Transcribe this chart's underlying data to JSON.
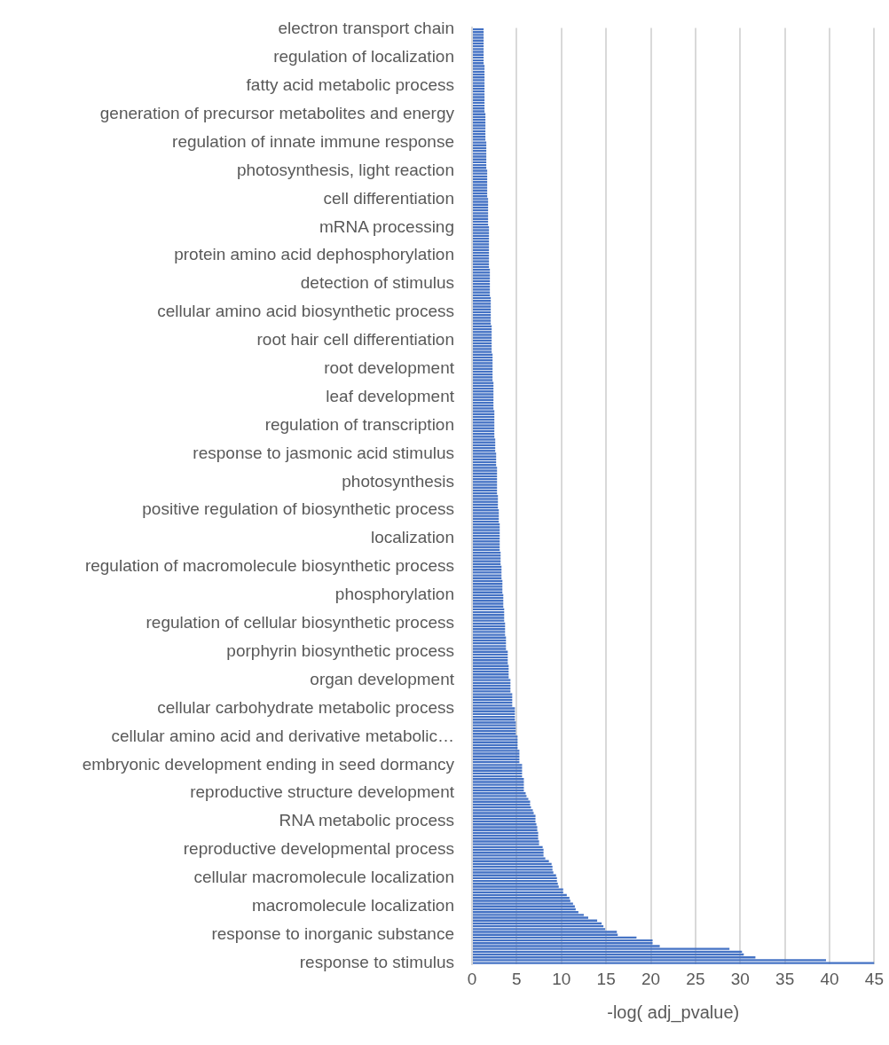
{
  "chart_data": {
    "type": "bar",
    "orientation": "horizontal",
    "xlabel": "-log( adj_pvalue)",
    "color": "#4472c4",
    "xlim": [
      0,
      45
    ],
    "xticks": [
      0,
      5,
      10,
      15,
      20,
      25,
      30,
      35,
      40,
      45
    ],
    "grid": "x",
    "categories": [
      "electron transport chain",
      null,
      null,
      null,
      null,
      null,
      null,
      null,
      null,
      null,
      "regulation of localization",
      null,
      null,
      null,
      null,
      null,
      null,
      null,
      null,
      null,
      "fatty acid metabolic process",
      null,
      null,
      null,
      null,
      null,
      null,
      null,
      null,
      null,
      "generation of precursor metabolites and energy",
      null,
      null,
      null,
      null,
      null,
      null,
      null,
      null,
      null,
      "regulation of innate immune response",
      null,
      null,
      null,
      null,
      null,
      null,
      null,
      null,
      null,
      "photosynthesis, light reaction",
      null,
      null,
      null,
      null,
      null,
      null,
      null,
      null,
      null,
      "cell differentiation",
      null,
      null,
      null,
      null,
      null,
      null,
      null,
      null,
      null,
      "mRNA processing",
      null,
      null,
      null,
      null,
      null,
      null,
      null,
      null,
      null,
      "protein amino acid dephosphorylation",
      null,
      null,
      null,
      null,
      null,
      null,
      null,
      null,
      null,
      "detection of stimulus",
      null,
      null,
      null,
      null,
      null,
      null,
      null,
      null,
      null,
      "cellular amino acid biosynthetic process",
      null,
      null,
      null,
      null,
      null,
      null,
      null,
      null,
      null,
      "root hair cell differentiation",
      null,
      null,
      null,
      null,
      null,
      null,
      null,
      null,
      null,
      "root development",
      null,
      null,
      null,
      null,
      null,
      null,
      null,
      null,
      null,
      "leaf development",
      null,
      null,
      null,
      null,
      null,
      null,
      null,
      null,
      null,
      "regulation of transcription",
      null,
      null,
      null,
      null,
      null,
      null,
      null,
      null,
      null,
      "response to jasmonic acid stimulus",
      null,
      null,
      null,
      null,
      null,
      null,
      null,
      null,
      null,
      "photosynthesis",
      null,
      null,
      null,
      null,
      null,
      null,
      null,
      null,
      null,
      "positive regulation of biosynthetic process",
      null,
      null,
      null,
      null,
      null,
      null,
      null,
      null,
      null,
      "localization",
      null,
      null,
      null,
      null,
      null,
      null,
      null,
      null,
      null,
      "regulation of macromolecule biosynthetic process",
      null,
      null,
      null,
      null,
      null,
      null,
      null,
      null,
      null,
      "phosphorylation",
      null,
      null,
      null,
      null,
      null,
      null,
      null,
      null,
      null,
      "regulation of cellular biosynthetic process",
      null,
      null,
      null,
      null,
      null,
      null,
      null,
      null,
      null,
      "porphyrin biosynthetic process",
      null,
      null,
      null,
      null,
      null,
      null,
      null,
      null,
      null,
      "organ development",
      null,
      null,
      null,
      null,
      null,
      null,
      null,
      null,
      null,
      "cellular carbohydrate metabolic process",
      null,
      null,
      null,
      null,
      null,
      null,
      null,
      null,
      null,
      "cellular amino acid and derivative metabolic…",
      null,
      null,
      null,
      null,
      null,
      null,
      null,
      null,
      null,
      "embryonic development ending in seed dormancy",
      null,
      null,
      null,
      null,
      null,
      null,
      null,
      null,
      null,
      "reproductive structure development",
      null,
      null,
      null,
      null,
      null,
      null,
      null,
      null,
      null,
      "RNA metabolic process",
      null,
      null,
      null,
      null,
      null,
      null,
      null,
      null,
      null,
      "reproductive developmental process",
      null,
      null,
      null,
      null,
      null,
      null,
      null,
      null,
      null,
      "cellular macromolecule localization",
      null,
      null,
      null,
      null,
      null,
      null,
      null,
      null,
      null,
      "macromolecule localization",
      null,
      null,
      null,
      null,
      null,
      null,
      null,
      null,
      null,
      "response to inorganic substance",
      null,
      null,
      null,
      null,
      null,
      null,
      null,
      null,
      null,
      "response to stimulus"
    ],
    "values": [
      1.3,
      1.3,
      1.3,
      1.3,
      1.3,
      1.3,
      1.3,
      1.3,
      1.3,
      1.3,
      1.3,
      1.3,
      1.3,
      1.4,
      1.4,
      1.4,
      1.4,
      1.4,
      1.4,
      1.4,
      1.4,
      1.4,
      1.4,
      1.4,
      1.4,
      1.4,
      1.4,
      1.4,
      1.4,
      1.4,
      1.5,
      1.5,
      1.5,
      1.5,
      1.5,
      1.5,
      1.5,
      1.5,
      1.5,
      1.5,
      1.6,
      1.6,
      1.6,
      1.6,
      1.6,
      1.6,
      1.6,
      1.6,
      1.6,
      1.6,
      1.7,
      1.7,
      1.7,
      1.7,
      1.7,
      1.7,
      1.7,
      1.7,
      1.7,
      1.7,
      1.8,
      1.8,
      1.8,
      1.8,
      1.8,
      1.8,
      1.8,
      1.8,
      1.8,
      1.8,
      1.9,
      1.9,
      1.9,
      1.9,
      1.9,
      1.9,
      1.9,
      1.9,
      1.9,
      1.9,
      1.9,
      1.9,
      1.9,
      1.9,
      1.9,
      2.0,
      2.0,
      2.0,
      2.0,
      2.0,
      2.0,
      2.0,
      2.0,
      2.0,
      2.0,
      2.1,
      2.1,
      2.1,
      2.1,
      2.1,
      2.1,
      2.1,
      2.1,
      2.1,
      2.1,
      2.2,
      2.2,
      2.2,
      2.2,
      2.2,
      2.2,
      2.2,
      2.2,
      2.2,
      2.2,
      2.3,
      2.3,
      2.3,
      2.3,
      2.3,
      2.3,
      2.3,
      2.3,
      2.3,
      2.3,
      2.4,
      2.4,
      2.4,
      2.4,
      2.4,
      2.4,
      2.4,
      2.4,
      2.4,
      2.4,
      2.5,
      2.5,
      2.5,
      2.5,
      2.5,
      2.5,
      2.5,
      2.5,
      2.5,
      2.5,
      2.6,
      2.6,
      2.6,
      2.6,
      2.6,
      2.7,
      2.7,
      2.7,
      2.7,
      2.7,
      2.8,
      2.8,
      2.8,
      2.8,
      2.8,
      2.8,
      2.8,
      2.8,
      2.8,
      2.8,
      2.9,
      2.9,
      2.9,
      2.9,
      2.9,
      3.0,
      3.0,
      3.0,
      3.0,
      3.0,
      3.1,
      3.1,
      3.1,
      3.1,
      3.1,
      3.1,
      3.1,
      3.1,
      3.1,
      3.1,
      3.2,
      3.2,
      3.2,
      3.2,
      3.2,
      3.3,
      3.3,
      3.3,
      3.3,
      3.3,
      3.4,
      3.4,
      3.4,
      3.4,
      3.4,
      3.5,
      3.5,
      3.5,
      3.5,
      3.5,
      3.6,
      3.6,
      3.6,
      3.6,
      3.6,
      3.7,
      3.7,
      3.7,
      3.7,
      3.7,
      3.8,
      3.8,
      3.8,
      3.8,
      3.8,
      4.0,
      4.0,
      4.0,
      4.0,
      4.0,
      4.1,
      4.1,
      4.1,
      4.1,
      4.1,
      4.3,
      4.3,
      4.3,
      4.3,
      4.3,
      4.5,
      4.5,
      4.5,
      4.5,
      4.5,
      4.8,
      4.8,
      4.8,
      4.8,
      4.8,
      4.9,
      4.9,
      4.9,
      4.9,
      4.9,
      5.1,
      5.1,
      5.1,
      5.1,
      5.1,
      5.3,
      5.3,
      5.3,
      5.3,
      5.3,
      5.6,
      5.6,
      5.6,
      5.6,
      5.6,
      5.8,
      5.8,
      5.8,
      5.8,
      5.8,
      6.0,
      6.1,
      6.3,
      6.5,
      6.5,
      6.6,
      6.8,
      6.9,
      7.1,
      7.1,
      7.1,
      7.2,
      7.3,
      7.3,
      7.4,
      7.4,
      7.4,
      7.5,
      7.5,
      7.9,
      8.0,
      8.0,
      8.0,
      8.2,
      8.6,
      8.9,
      9.0,
      9.0,
      9.1,
      9.4,
      9.5,
      9.5,
      9.6,
      9.7,
      10.2,
      10.2,
      10.6,
      10.9,
      11.0,
      11.3,
      11.5,
      11.6,
      11.9,
      12.5,
      13.0,
      14.0,
      14.5,
      14.7,
      14.9,
      16.2,
      16.3,
      18.4,
      20.2,
      20.2,
      21.0,
      28.8,
      30.2,
      30.4,
      31.7,
      39.6,
      45
    ]
  }
}
